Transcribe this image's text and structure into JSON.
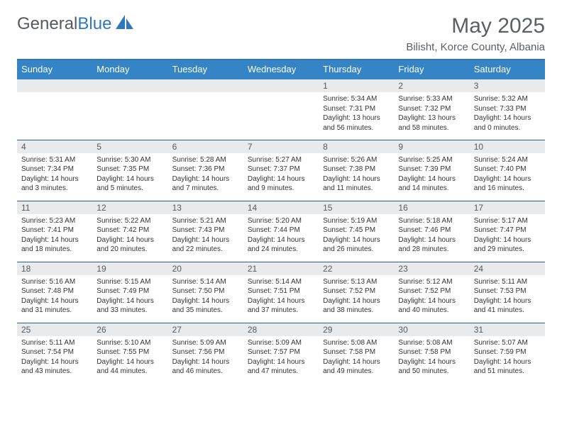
{
  "logo": {
    "text_general": "General",
    "text_blue": "Blue"
  },
  "header": {
    "month_title": "May 2025",
    "location": "Bilisht, Korce County, Albania"
  },
  "colors": {
    "header_bg": "#3585c6",
    "header_border": "#2f78bd",
    "row_border": "#26608f",
    "daynum_bg": "#e9eaeb",
    "text_gray": "#5a5f64"
  },
  "daynames": [
    "Sunday",
    "Monday",
    "Tuesday",
    "Wednesday",
    "Thursday",
    "Friday",
    "Saturday"
  ],
  "weeks": [
    [
      null,
      null,
      null,
      null,
      {
        "n": "1",
        "sunrise": "5:34 AM",
        "sunset": "7:31 PM",
        "daylight": "13 hours and 56 minutes."
      },
      {
        "n": "2",
        "sunrise": "5:33 AM",
        "sunset": "7:32 PM",
        "daylight": "13 hours and 58 minutes."
      },
      {
        "n": "3",
        "sunrise": "5:32 AM",
        "sunset": "7:33 PM",
        "daylight": "14 hours and 0 minutes."
      }
    ],
    [
      {
        "n": "4",
        "sunrise": "5:31 AM",
        "sunset": "7:34 PM",
        "daylight": "14 hours and 3 minutes."
      },
      {
        "n": "5",
        "sunrise": "5:30 AM",
        "sunset": "7:35 PM",
        "daylight": "14 hours and 5 minutes."
      },
      {
        "n": "6",
        "sunrise": "5:28 AM",
        "sunset": "7:36 PM",
        "daylight": "14 hours and 7 minutes."
      },
      {
        "n": "7",
        "sunrise": "5:27 AM",
        "sunset": "7:37 PM",
        "daylight": "14 hours and 9 minutes."
      },
      {
        "n": "8",
        "sunrise": "5:26 AM",
        "sunset": "7:38 PM",
        "daylight": "14 hours and 11 minutes."
      },
      {
        "n": "9",
        "sunrise": "5:25 AM",
        "sunset": "7:39 PM",
        "daylight": "14 hours and 14 minutes."
      },
      {
        "n": "10",
        "sunrise": "5:24 AM",
        "sunset": "7:40 PM",
        "daylight": "14 hours and 16 minutes."
      }
    ],
    [
      {
        "n": "11",
        "sunrise": "5:23 AM",
        "sunset": "7:41 PM",
        "daylight": "14 hours and 18 minutes."
      },
      {
        "n": "12",
        "sunrise": "5:22 AM",
        "sunset": "7:42 PM",
        "daylight": "14 hours and 20 minutes."
      },
      {
        "n": "13",
        "sunrise": "5:21 AM",
        "sunset": "7:43 PM",
        "daylight": "14 hours and 22 minutes."
      },
      {
        "n": "14",
        "sunrise": "5:20 AM",
        "sunset": "7:44 PM",
        "daylight": "14 hours and 24 minutes."
      },
      {
        "n": "15",
        "sunrise": "5:19 AM",
        "sunset": "7:45 PM",
        "daylight": "14 hours and 26 minutes."
      },
      {
        "n": "16",
        "sunrise": "5:18 AM",
        "sunset": "7:46 PM",
        "daylight": "14 hours and 28 minutes."
      },
      {
        "n": "17",
        "sunrise": "5:17 AM",
        "sunset": "7:47 PM",
        "daylight": "14 hours and 29 minutes."
      }
    ],
    [
      {
        "n": "18",
        "sunrise": "5:16 AM",
        "sunset": "7:48 PM",
        "daylight": "14 hours and 31 minutes."
      },
      {
        "n": "19",
        "sunrise": "5:15 AM",
        "sunset": "7:49 PM",
        "daylight": "14 hours and 33 minutes."
      },
      {
        "n": "20",
        "sunrise": "5:14 AM",
        "sunset": "7:50 PM",
        "daylight": "14 hours and 35 minutes."
      },
      {
        "n": "21",
        "sunrise": "5:14 AM",
        "sunset": "7:51 PM",
        "daylight": "14 hours and 37 minutes."
      },
      {
        "n": "22",
        "sunrise": "5:13 AM",
        "sunset": "7:52 PM",
        "daylight": "14 hours and 38 minutes."
      },
      {
        "n": "23",
        "sunrise": "5:12 AM",
        "sunset": "7:52 PM",
        "daylight": "14 hours and 40 minutes."
      },
      {
        "n": "24",
        "sunrise": "5:11 AM",
        "sunset": "7:53 PM",
        "daylight": "14 hours and 41 minutes."
      }
    ],
    [
      {
        "n": "25",
        "sunrise": "5:11 AM",
        "sunset": "7:54 PM",
        "daylight": "14 hours and 43 minutes."
      },
      {
        "n": "26",
        "sunrise": "5:10 AM",
        "sunset": "7:55 PM",
        "daylight": "14 hours and 44 minutes."
      },
      {
        "n": "27",
        "sunrise": "5:09 AM",
        "sunset": "7:56 PM",
        "daylight": "14 hours and 46 minutes."
      },
      {
        "n": "28",
        "sunrise": "5:09 AM",
        "sunset": "7:57 PM",
        "daylight": "14 hours and 47 minutes."
      },
      {
        "n": "29",
        "sunrise": "5:08 AM",
        "sunset": "7:58 PM",
        "daylight": "14 hours and 49 minutes."
      },
      {
        "n": "30",
        "sunrise": "5:08 AM",
        "sunset": "7:58 PM",
        "daylight": "14 hours and 50 minutes."
      },
      {
        "n": "31",
        "sunrise": "5:07 AM",
        "sunset": "7:59 PM",
        "daylight": "14 hours and 51 minutes."
      }
    ]
  ],
  "labels": {
    "sunrise": "Sunrise:",
    "sunset": "Sunset:",
    "daylight": "Daylight:"
  }
}
